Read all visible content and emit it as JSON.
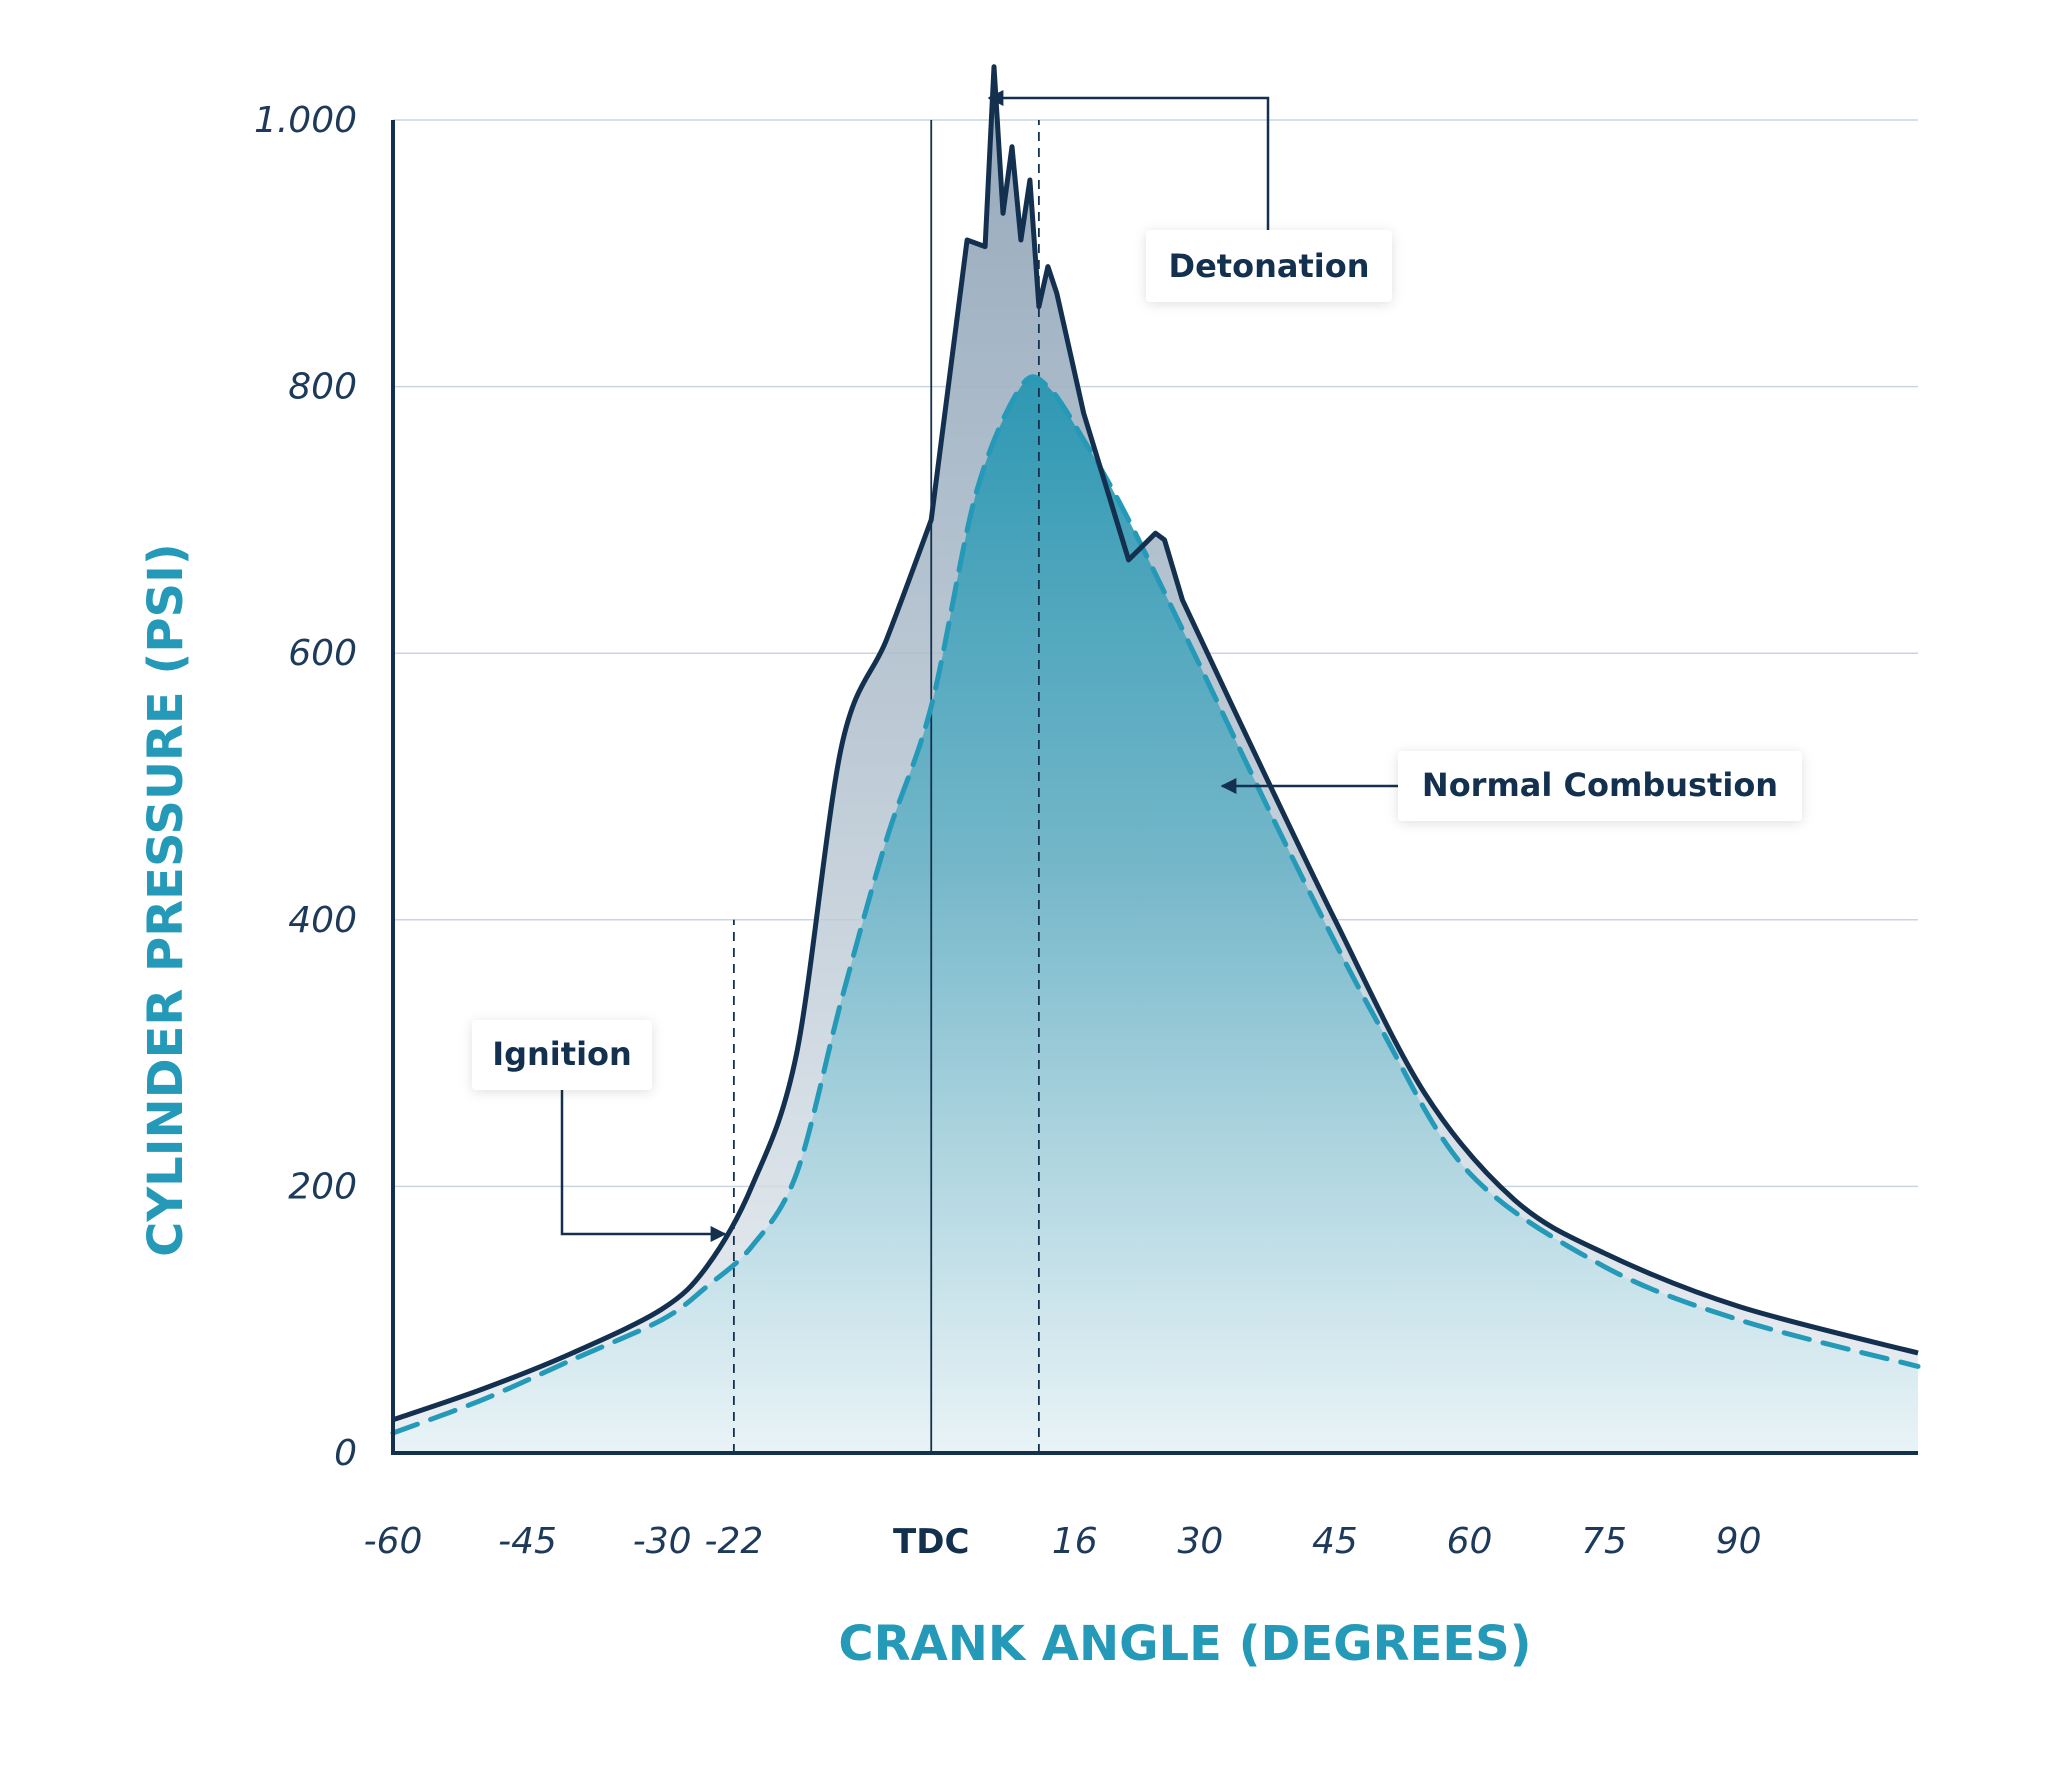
{
  "chart_data": {
    "type": "area",
    "xlabel": "CRANK ANGLE (DEGREES)",
    "ylabel": "CYLINDER PRESSURE (PSI)",
    "xlim": [
      -60,
      110
    ],
    "ylim": [
      0,
      1000
    ],
    "y_ticks": [
      {
        "value": 0,
        "label": "0"
      },
      {
        "value": 200,
        "label": "200"
      },
      {
        "value": 400,
        "label": "400"
      },
      {
        "value": 600,
        "label": "600"
      },
      {
        "value": 800,
        "label": "800"
      },
      {
        "value": 1000,
        "label": "1.000"
      }
    ],
    "x_ticks": [
      {
        "value": -60,
        "label": "-60",
        "bold": false
      },
      {
        "value": -45,
        "label": "-45",
        "bold": false
      },
      {
        "value": -30,
        "label": "-30",
        "bold": false
      },
      {
        "value": -22,
        "label": "-22",
        "bold": false
      },
      {
        "value": 0,
        "label": "TDC",
        "bold": true
      },
      {
        "value": 16,
        "label": "16",
        "bold": false
      },
      {
        "value": 30,
        "label": "30",
        "bold": false
      },
      {
        "value": 45,
        "label": "45",
        "bold": false
      },
      {
        "value": 60,
        "label": "60",
        "bold": false
      },
      {
        "value": 75,
        "label": "75",
        "bold": false
      },
      {
        "value": 90,
        "label": "90",
        "bold": false
      }
    ],
    "grid": true,
    "reference_lines": [
      {
        "x": -22,
        "style": "dashed",
        "y_top": 400
      },
      {
        "x": 0,
        "style": "solid",
        "y_top": 1000
      },
      {
        "x": 12,
        "style": "dashed",
        "y_top": 1000
      }
    ],
    "series": [
      {
        "name": "Detonation",
        "style": "solid",
        "color": "#14304f",
        "x": [
          -60,
          -50,
          -40,
          -30,
          -25,
          -20,
          -15,
          -10,
          -5,
          0,
          4,
          6,
          7,
          8,
          9,
          10,
          11,
          12,
          13,
          14,
          15,
          17,
          22,
          25,
          26,
          28,
          35,
          45,
          55,
          65,
          75,
          90,
          110
        ],
        "y": [
          25,
          48,
          75,
          108,
          140,
          200,
          300,
          530,
          610,
          700,
          910,
          905,
          1040,
          930,
          980,
          910,
          955,
          860,
          890,
          870,
          840,
          780,
          670,
          690,
          685,
          640,
          540,
          400,
          270,
          190,
          150,
          110,
          75
        ]
      },
      {
        "name": "Normal Combustion",
        "style": "dashed",
        "color": "#2499b8",
        "x": [
          -60,
          -50,
          -40,
          -30,
          -25,
          -20,
          -15,
          -10,
          -5,
          0,
          5,
          10,
          13,
          17,
          22,
          30,
          40,
          50,
          60,
          75,
          90,
          110
        ],
        "y": [
          15,
          40,
          70,
          100,
          125,
          155,
          210,
          340,
          460,
          560,
          720,
          800,
          800,
          760,
          700,
          590,
          450,
          320,
          210,
          140,
          100,
          65
        ]
      }
    ],
    "annotations": [
      {
        "text": "Detonation",
        "target": "peak"
      },
      {
        "text": "Normal Combustion",
        "target": "dashed-curve"
      },
      {
        "text": "Ignition",
        "target": "ignition-point"
      }
    ]
  }
}
